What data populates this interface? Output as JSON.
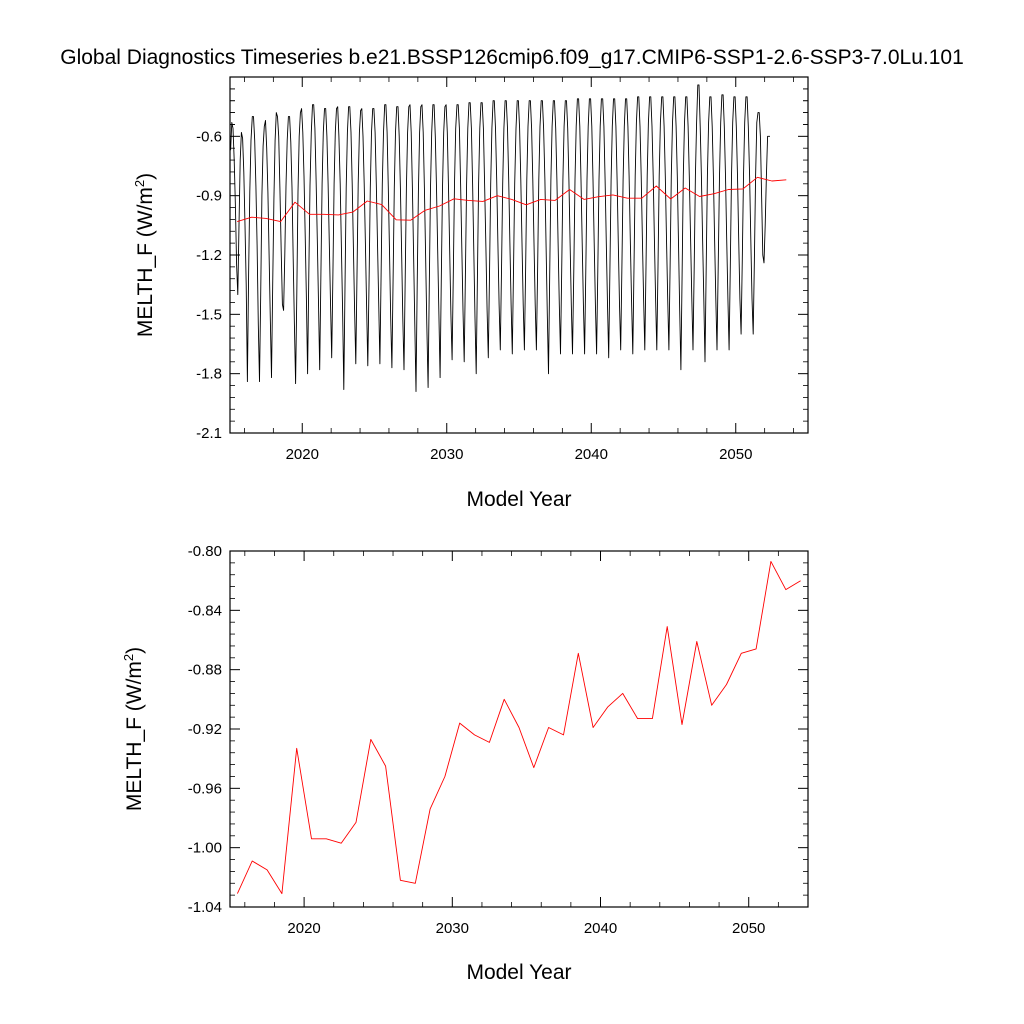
{
  "title": "Global Diagnostics Timeseries b.e21.BSSP126cmip6.f09_g17.CMIP6-SSP1-2.6-SSP3-7.0Lu.101",
  "colors": {
    "monthly_line": "#000000",
    "annual_line": "#ff0000",
    "axes": "#000000"
  },
  "chart_data": [
    {
      "type": "line",
      "xlabel": "Model Year",
      "ylabel": "MELTH_F (W/m²)",
      "ylabel_parts": {
        "main": "MELTH_F (W/m",
        "sup": "2",
        "tail": ")"
      },
      "xlim": [
        2015,
        2055
      ],
      "ylim": [
        -2.1,
        -0.3
      ],
      "xticks": [
        2020,
        2030,
        2040,
        2050
      ],
      "xtick_labels": [
        "2020",
        "2030",
        "2040",
        "2050"
      ],
      "yticks": [
        -2.1,
        -1.8,
        -1.5,
        -1.2,
        -0.9,
        -0.6
      ],
      "ytick_labels": [
        "-2.1",
        "-1.8",
        "-1.5",
        "-1.2",
        "-0.9",
        "-0.6"
      ],
      "series": [
        {
          "kind": "monthly",
          "x_start": 2015.04,
          "x_step": 0.08333,
          "values": [
            -0.67,
            -0.53,
            -0.56,
            -0.72,
            -0.95,
            -1.25,
            -1.4,
            -1.05,
            -0.72,
            -0.58,
            -0.61,
            -0.78,
            -1.05,
            -1.35,
            -1.84,
            -1.3,
            -0.88,
            -0.62,
            -0.5,
            -0.5,
            -0.62,
            -0.85,
            -1.15,
            -1.55,
            -1.84,
            -1.4,
            -0.9,
            -0.65,
            -0.55,
            -0.52,
            -0.66,
            -0.88,
            -1.2,
            -1.52,
            -1.82,
            -1.35,
            -0.92,
            -0.62,
            -0.48,
            -0.5,
            -0.6,
            -0.86,
            -1.18,
            -1.45,
            -1.48,
            -1.2,
            -0.85,
            -0.62,
            -0.5,
            -0.5,
            -0.63,
            -0.86,
            -1.22,
            -1.55,
            -1.85,
            -1.4,
            -0.88,
            -0.6,
            -0.48,
            -0.46,
            -0.58,
            -0.8,
            -1.1,
            -1.42,
            -1.8,
            -1.3,
            -0.85,
            -0.58,
            -0.44,
            -0.44,
            -0.56,
            -0.82,
            -1.12,
            -1.44,
            -1.78,
            -1.3,
            -0.84,
            -0.58,
            -0.46,
            -0.46,
            -0.6,
            -0.84,
            -1.14,
            -1.44,
            -1.72,
            -1.3,
            -0.84,
            -0.58,
            -0.46,
            -0.45,
            -0.6,
            -0.84,
            -1.16,
            -1.48,
            -1.88,
            -1.36,
            -0.86,
            -0.58,
            -0.45,
            -0.45,
            -0.58,
            -0.84,
            -1.16,
            -1.48,
            -1.75,
            -1.3,
            -0.84,
            -0.58,
            -0.47,
            -0.46,
            -0.6,
            -0.84,
            -1.14,
            -1.46,
            -1.76,
            -1.32,
            -0.86,
            -0.58,
            -0.46,
            -0.46,
            -0.58,
            -0.84,
            -1.14,
            -1.44,
            -1.75,
            -1.3,
            -0.84,
            -0.58,
            -0.44,
            -0.44,
            -0.58,
            -0.86,
            -1.18,
            -1.52,
            -1.77,
            -1.32,
            -0.86,
            -0.58,
            -0.45,
            -0.45,
            -0.6,
            -0.86,
            -1.18,
            -1.52,
            -1.78,
            -1.32,
            -0.86,
            -0.58,
            -0.45,
            -0.44,
            -0.58,
            -0.86,
            -1.2,
            -1.55,
            -1.89,
            -1.35,
            -0.88,
            -0.58,
            -0.45,
            -0.44,
            -0.58,
            -0.86,
            -1.2,
            -1.55,
            -1.87,
            -1.35,
            -0.86,
            -0.58,
            -0.44,
            -0.44,
            -0.6,
            -0.86,
            -1.18,
            -1.5,
            -1.82,
            -1.32,
            -0.86,
            -0.58,
            -0.45,
            -0.44,
            -0.58,
            -0.86,
            -1.18,
            -1.5,
            -1.73,
            -1.3,
            -0.84,
            -0.56,
            -0.44,
            -0.44,
            -0.56,
            -0.84,
            -1.16,
            -1.48,
            -1.74,
            -1.3,
            -0.84,
            -0.56,
            -0.43,
            -0.43,
            -0.56,
            -0.84,
            -1.18,
            -1.52,
            -1.8,
            -1.32,
            -0.84,
            -0.56,
            -0.43,
            -0.43,
            -0.56,
            -0.84,
            -1.16,
            -1.48,
            -1.72,
            -1.3,
            -0.84,
            -0.56,
            -0.42,
            -0.42,
            -0.56,
            -0.82,
            -1.14,
            -1.45,
            -1.68,
            -1.28,
            -0.84,
            -0.56,
            -0.42,
            -0.42,
            -0.56,
            -0.82,
            -1.14,
            -1.45,
            -1.7,
            -1.28,
            -0.84,
            -0.56,
            -0.42,
            -0.42,
            -0.56,
            -0.82,
            -1.14,
            -1.45,
            -1.68,
            -1.28,
            -0.82,
            -0.55,
            -0.42,
            -0.42,
            -0.56,
            -0.82,
            -1.14,
            -1.45,
            -1.68,
            -1.28,
            -0.82,
            -0.55,
            -0.42,
            -0.42,
            -0.56,
            -0.82,
            -1.16,
            -1.5,
            -1.8,
            -1.3,
            -0.82,
            -0.55,
            -0.42,
            -0.42,
            -0.56,
            -0.82,
            -1.14,
            -1.45,
            -1.7,
            -1.28,
            -0.82,
            -0.55,
            -0.42,
            -0.42,
            -0.56,
            -0.82,
            -1.14,
            -1.45,
            -1.7,
            -1.28,
            -0.82,
            -0.55,
            -0.41,
            -0.41,
            -0.55,
            -0.82,
            -1.14,
            -1.45,
            -1.7,
            -1.28,
            -0.82,
            -0.55,
            -0.41,
            -0.41,
            -0.55,
            -0.82,
            -1.14,
            -1.45,
            -1.7,
            -1.28,
            -0.82,
            -0.55,
            -0.41,
            -0.41,
            -0.55,
            -0.82,
            -1.14,
            -1.45,
            -1.72,
            -1.28,
            -0.82,
            -0.55,
            -0.41,
            -0.41,
            -0.55,
            -0.82,
            -1.14,
            -1.45,
            -1.68,
            -1.26,
            -0.82,
            -0.55,
            -0.41,
            -0.41,
            -0.55,
            -0.8,
            -1.12,
            -1.42,
            -1.7,
            -1.26,
            -0.8,
            -0.53,
            -0.4,
            -0.4,
            -0.55,
            -0.8,
            -1.12,
            -1.42,
            -1.68,
            -1.26,
            -0.8,
            -0.53,
            -0.4,
            -0.4,
            -0.55,
            -0.8,
            -1.12,
            -1.42,
            -1.68,
            -1.26,
            -0.8,
            -0.53,
            -0.4,
            -0.4,
            -0.55,
            -0.8,
            -1.12,
            -1.42,
            -1.68,
            -1.26,
            -0.8,
            -0.53,
            -0.4,
            -0.4,
            -0.55,
            -0.8,
            -1.14,
            -1.48,
            -1.78,
            -1.3,
            -0.8,
            -0.53,
            -0.4,
            -0.4,
            -0.55,
            -0.8,
            -1.12,
            -1.42,
            -1.68,
            -1.26,
            -0.8,
            -0.53,
            -0.34,
            -0.34,
            -0.55,
            -0.8,
            -1.12,
            -1.42,
            -1.74,
            -1.26,
            -0.8,
            -0.53,
            -0.4,
            -0.4,
            -0.55,
            -0.8,
            -1.12,
            -1.42,
            -1.68,
            -1.26,
            -0.8,
            -0.53,
            -0.39,
            -0.39,
            -0.55,
            -0.8,
            -1.12,
            -1.42,
            -1.68,
            -1.26,
            -0.8,
            -0.53,
            -0.4,
            -0.4,
            -0.55,
            -0.8,
            -1.12,
            -1.42,
            -1.6,
            -1.22,
            -0.8,
            -0.53,
            -0.4,
            -0.4,
            -0.55,
            -0.8,
            -1.12,
            -1.42,
            -1.6,
            -1.22,
            -0.8,
            -0.53,
            -0.48,
            -0.48,
            -0.6,
            -0.9,
            -1.2,
            -1.24,
            -1.05,
            -0.8,
            -0.6,
            -0.6,
            -0.6
          ]
        },
        {
          "kind": "annual",
          "x": [
            2015.5,
            2016.5,
            2017.5,
            2018.5,
            2019.5,
            2020.5,
            2021.5,
            2022.5,
            2023.5,
            2024.5,
            2025.5,
            2026.5,
            2027.5,
            2028.5,
            2029.5,
            2030.5,
            2031.5,
            2032.5,
            2033.5,
            2034.5,
            2035.5,
            2036.5,
            2037.5,
            2038.5,
            2039.5,
            2040.5,
            2041.5,
            2042.5,
            2043.5,
            2044.5,
            2045.5,
            2046.5,
            2047.5,
            2048.5,
            2049.5,
            2050.5,
            2051.5,
            2052.5,
            2053.5
          ],
          "values": [
            -1.031,
            -1.009,
            -1.015,
            -1.031,
            -0.933,
            -0.994,
            -0.994,
            -0.997,
            -0.983,
            -0.927,
            -0.945,
            -1.022,
            -1.024,
            -0.974,
            -0.952,
            -0.916,
            -0.924,
            -0.929,
            -0.9,
            -0.919,
            -0.946,
            -0.919,
            -0.924,
            -0.869,
            -0.919,
            -0.905,
            -0.896,
            -0.913,
            -0.913,
            -0.851,
            -0.917,
            -0.861,
            -0.904,
            -0.89,
            -0.869,
            -0.866,
            -0.807,
            -0.826,
            -0.82
          ]
        }
      ]
    },
    {
      "type": "line",
      "xlabel": "Model Year",
      "ylabel": "MELTH_F (W/m²)",
      "ylabel_parts": {
        "main": "MELTH_F (W/m",
        "sup": "2",
        "tail": ")"
      },
      "xlim": [
        2015,
        2054
      ],
      "ylim": [
        -1.04,
        -0.8
      ],
      "xticks": [
        2020,
        2030,
        2040,
        2050
      ],
      "xtick_labels": [
        "2020",
        "2030",
        "2040",
        "2050"
      ],
      "yticks": [
        -1.04,
        -1.0,
        -0.96,
        -0.92,
        -0.88,
        -0.84,
        -0.8
      ],
      "ytick_labels": [
        "-1.04",
        "-1.00",
        "-0.96",
        "-0.92",
        "-0.88",
        "-0.84",
        "-0.80"
      ],
      "series": [
        {
          "kind": "annual",
          "x": [
            2015.5,
            2016.5,
            2017.5,
            2018.5,
            2019.5,
            2020.5,
            2021.5,
            2022.5,
            2023.5,
            2024.5,
            2025.5,
            2026.5,
            2027.5,
            2028.5,
            2029.5,
            2030.5,
            2031.5,
            2032.5,
            2033.5,
            2034.5,
            2035.5,
            2036.5,
            2037.5,
            2038.5,
            2039.5,
            2040.5,
            2041.5,
            2042.5,
            2043.5,
            2044.5,
            2045.5,
            2046.5,
            2047.5,
            2048.5,
            2049.5,
            2050.5,
            2051.5,
            2052.5,
            2053.5
          ],
          "values": [
            -1.031,
            -1.009,
            -1.015,
            -1.031,
            -0.933,
            -0.994,
            -0.994,
            -0.997,
            -0.983,
            -0.927,
            -0.945,
            -1.022,
            -1.024,
            -0.974,
            -0.952,
            -0.916,
            -0.924,
            -0.929,
            -0.9,
            -0.919,
            -0.946,
            -0.919,
            -0.924,
            -0.869,
            -0.919,
            -0.905,
            -0.896,
            -0.913,
            -0.913,
            -0.851,
            -0.917,
            -0.861,
            -0.904,
            -0.89,
            -0.869,
            -0.866,
            -0.807,
            -0.826,
            -0.82
          ]
        }
      ]
    }
  ]
}
